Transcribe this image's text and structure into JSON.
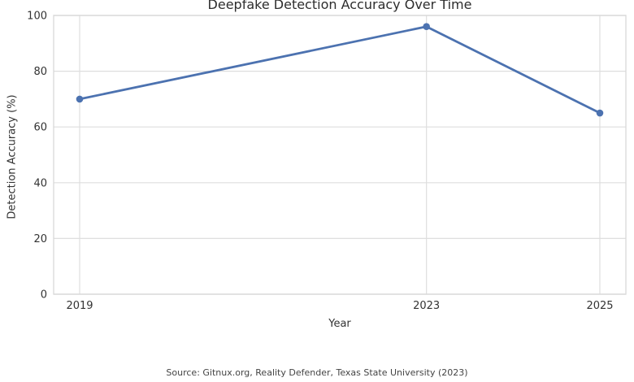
{
  "chart_data": {
    "type": "line",
    "title": "Deepfake Detection Accuracy Over Time",
    "xlabel": "Year",
    "ylabel": "Detection Accuracy (%)",
    "x": [
      2019,
      2023,
      2025
    ],
    "values": [
      70,
      96,
      65
    ],
    "xticks": [
      2019,
      2023,
      2025
    ],
    "yticks": [
      0,
      20,
      40,
      60,
      80,
      100
    ],
    "xlim": [
      2018.7,
      2025.3
    ],
    "ylim": [
      0,
      100
    ],
    "grid": true,
    "legend": false,
    "marker": "circle",
    "source": "Source: Gitnux.org, Reality Defender, Texas State University (2023)",
    "colors": {
      "line": "#4c72b0",
      "marker": "#4c72b0",
      "grid": "#dedede",
      "spine": "#d8d8d8",
      "tick_text": "#333333",
      "title_text": "#2d2d2d",
      "source_text": "#444444"
    }
  }
}
